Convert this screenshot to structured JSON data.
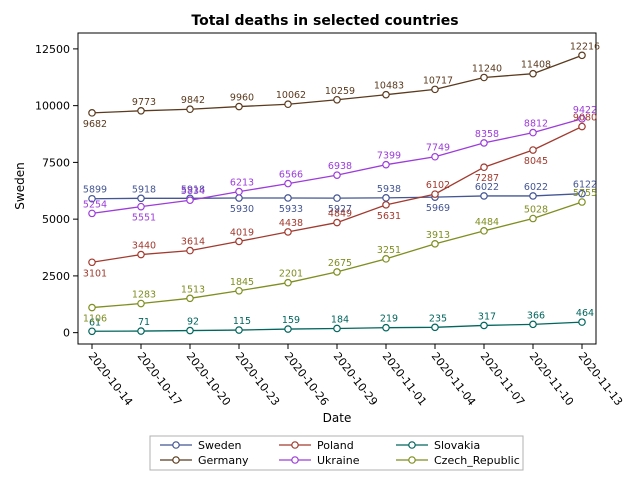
{
  "chart_data": {
    "type": "line",
    "title": "Total deaths in selected countries",
    "xlabel": "Date",
    "ylabel": "Sweden",
    "x": [
      "2020-10-14",
      "2020-10-17",
      "2020-10-20",
      "2020-10-23",
      "2020-10-26",
      "2020-10-29",
      "2020-11-01",
      "2020-11-04",
      "2020-11-07",
      "2020-11-10",
      "2020-11-13"
    ],
    "yticks": [
      0,
      2500,
      5000,
      7500,
      10000,
      12500
    ],
    "ylim": [
      -500,
      13200
    ],
    "grid": false,
    "legend_position": "bottom",
    "series": [
      {
        "name": "Sweden",
        "color": "#445694",
        "values": [
          5899,
          5918,
          5918,
          5930,
          5933,
          5927,
          5938,
          5969,
          6022,
          6022,
          6122
        ]
      },
      {
        "name": "Germany",
        "color": "#5b3a1e",
        "values": [
          9682,
          9773,
          9842,
          9960,
          10062,
          10259,
          10483,
          10717,
          11240,
          11408,
          12216
        ]
      },
      {
        "name": "Poland",
        "color": "#a23a2e",
        "values": [
          3101,
          3440,
          3614,
          4019,
          4438,
          4849,
          5631,
          6102,
          7287,
          8045,
          9080
        ]
      },
      {
        "name": "Ukraine",
        "color": "#9d3cdb",
        "values": [
          5254,
          5551,
          5834,
          6213,
          6566,
          6938,
          7399,
          7749,
          8358,
          8812,
          9422
        ]
      },
      {
        "name": "Slovakia",
        "color": "#01665e",
        "values": [
          61,
          71,
          92,
          115,
          159,
          184,
          219,
          235,
          317,
          366,
          464
        ]
      },
      {
        "name": "Czech_Republic",
        "color": "#7f8e1f",
        "values": [
          1106,
          1283,
          1513,
          1845,
          2201,
          2675,
          3251,
          3913,
          4484,
          5028,
          5755
        ]
      }
    ],
    "legend_order": [
      "Sweden",
      "Poland",
      "Slovakia",
      "Germany",
      "Ukraine",
      "Czech_Republic"
    ]
  }
}
